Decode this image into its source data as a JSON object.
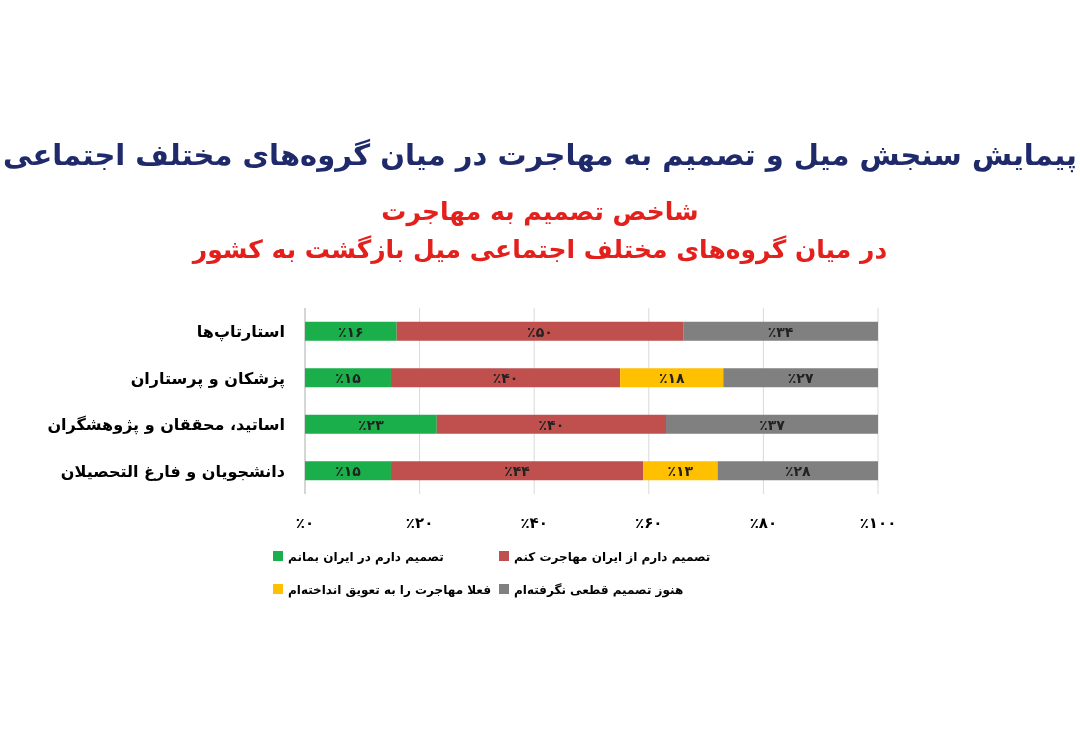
{
  "chart_data": {
    "type": "bar",
    "orientation": "horizontal",
    "stacked": true,
    "title": "پیمایش سنجش میل و تصمیم به مهاجرت در میان گروه‌های مختلف اجتماعی",
    "subtitle": "شاخص تصمیم به مهاجرت\nدر میان گروه‌های مختلف اجتماعی میل بازگشت به کشور",
    "categories": [
      "استارتاپ‌ها",
      "پزشکان و پرستاران",
      "اساتید، محققان و پژوهشگران",
      "دانشجویان و فارغ التحصیلان"
    ],
    "series": [
      {
        "name": "تصمیم دارم در ایران بمانم",
        "color": "#1aaf4b",
        "values": [
          16,
          15,
          23,
          15
        ],
        "value_labels": [
          "٪۱۶",
          "٪۱۵",
          "٪۲۳",
          "٪۱۵"
        ]
      },
      {
        "name": "تصمیم دارم از ایران مهاجرت کنم",
        "color": "#c0504d",
        "values": [
          50,
          40,
          40,
          44
        ],
        "value_labels": [
          "٪۵۰",
          "٪۴۰",
          "٪۴۰",
          "٪۴۴"
        ]
      },
      {
        "name": "فعلا مهاجرت را به تعویق انداخته‌ام",
        "color": "#ffc000",
        "values": [
          null,
          18,
          null,
          13
        ],
        "value_labels": [
          null,
          "٪۱۸",
          null,
          "٪۱۳"
        ]
      },
      {
        "name": "هنوز تصمیم قطعی نگرفته‌ام",
        "color": "#808080",
        "values": [
          34,
          27,
          37,
          28
        ],
        "value_labels": [
          "٪۳۴",
          "٪۲۷",
          "٪۳۷",
          "٪۲۸"
        ]
      }
    ],
    "xlim": [
      0,
      100
    ],
    "xticks": [
      {
        "value": 0,
        "label": "٪۰"
      },
      {
        "value": 20,
        "label": "٪۲۰"
      },
      {
        "value": 40,
        "label": "٪۴۰"
      },
      {
        "value": 60,
        "label": "٪۶۰"
      },
      {
        "value": 80,
        "label": "٪۸۰"
      },
      {
        "value": 100,
        "label": "٪۱۰۰"
      }
    ],
    "grid": "x",
    "legend": "bottom"
  }
}
